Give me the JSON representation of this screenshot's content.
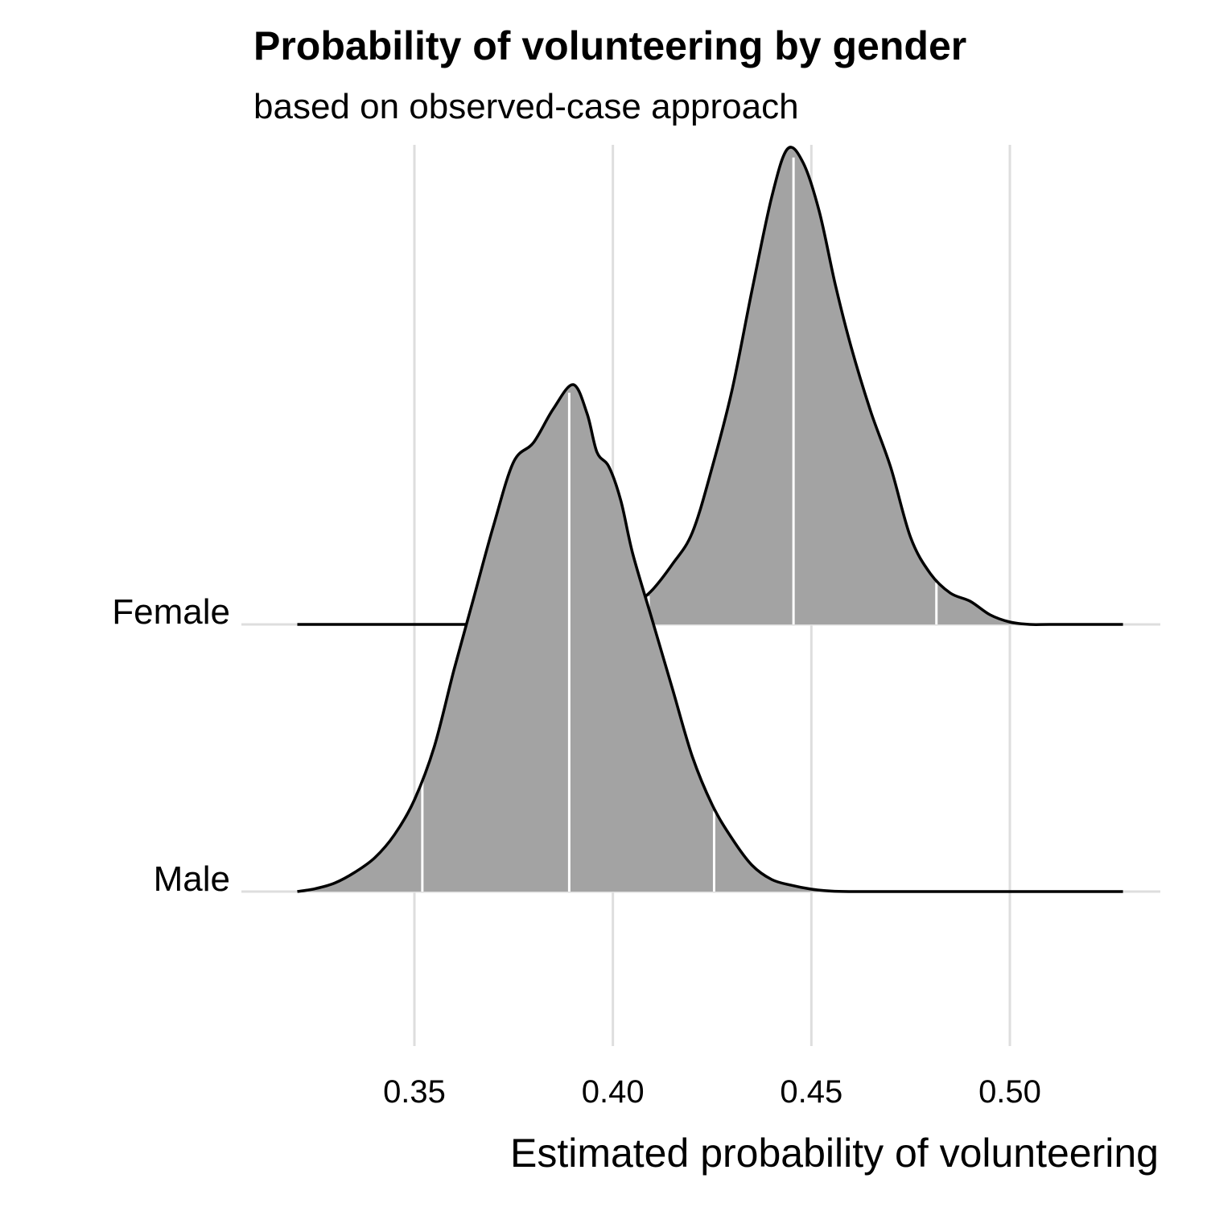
{
  "chart_data": {
    "type": "area",
    "subtype": "ridgeline-density",
    "title": "Probability of volunteering by gender",
    "subtitle": "based on observed-case approach",
    "xlabel": "Estimated probability of volunteering",
    "ylabel": "",
    "xlim": [
      0.3225,
      0.5375
    ],
    "x_ticks": [
      0.35,
      0.4,
      0.45,
      0.5
    ],
    "x_tick_labels": [
      "0.35",
      "0.40",
      "0.45",
      "0.50"
    ],
    "categories": [
      "Male",
      "Female"
    ],
    "grid": "vertical",
    "fill_color": "#a3a3a3",
    "line_color": "#000000",
    "quantile_line_color": "#ffffff",
    "series": [
      {
        "name": "Male",
        "quantiles": [
          0.352,
          0.389,
          0.4255
        ],
        "points": [
          [
            0.3205,
            0.0
          ],
          [
            0.325,
            0.006
          ],
          [
            0.33,
            0.018
          ],
          [
            0.335,
            0.04
          ],
          [
            0.34,
            0.07
          ],
          [
            0.345,
            0.118
          ],
          [
            0.35,
            0.19
          ],
          [
            0.355,
            0.3
          ],
          [
            0.36,
            0.46
          ],
          [
            0.365,
            0.61
          ],
          [
            0.37,
            0.76
          ],
          [
            0.375,
            0.89
          ],
          [
            0.38,
            0.93
          ],
          [
            0.385,
            1.0
          ],
          [
            0.39,
            1.05
          ],
          [
            0.3935,
            0.99
          ],
          [
            0.396,
            0.91
          ],
          [
            0.399,
            0.88
          ],
          [
            0.402,
            0.81
          ],
          [
            0.405,
            0.7
          ],
          [
            0.41,
            0.56
          ],
          [
            0.415,
            0.42
          ],
          [
            0.42,
            0.28
          ],
          [
            0.425,
            0.18
          ],
          [
            0.43,
            0.11
          ],
          [
            0.435,
            0.055
          ],
          [
            0.44,
            0.025
          ],
          [
            0.445,
            0.013
          ],
          [
            0.45,
            0.005
          ],
          [
            0.455,
            0.001
          ],
          [
            0.46,
            0.0
          ],
          [
            0.47,
            0.0
          ],
          [
            0.48,
            0.0
          ],
          [
            0.49,
            0.0
          ],
          [
            0.5,
            0.0
          ],
          [
            0.51,
            0.0
          ],
          [
            0.52,
            0.0
          ],
          [
            0.5285,
            0.0
          ]
        ]
      },
      {
        "name": "Female",
        "quantiles": [
          0.409,
          0.4455,
          0.4815
        ],
        "points": [
          [
            0.3205,
            0.0
          ],
          [
            0.33,
            0.0
          ],
          [
            0.34,
            0.0
          ],
          [
            0.35,
            0.0
          ],
          [
            0.36,
            0.0
          ],
          [
            0.37,
            0.0
          ],
          [
            0.38,
            0.0
          ],
          [
            0.39,
            0.0
          ],
          [
            0.4,
            0.0
          ],
          [
            0.4055,
            0.04
          ],
          [
            0.41,
            0.072
          ],
          [
            0.415,
            0.125
          ],
          [
            0.42,
            0.19
          ],
          [
            0.425,
            0.325
          ],
          [
            0.43,
            0.485
          ],
          [
            0.435,
            0.69
          ],
          [
            0.44,
            0.885
          ],
          [
            0.444,
            0.985
          ],
          [
            0.448,
            0.955
          ],
          [
            0.452,
            0.855
          ],
          [
            0.456,
            0.705
          ],
          [
            0.46,
            0.575
          ],
          [
            0.465,
            0.44
          ],
          [
            0.47,
            0.325
          ],
          [
            0.475,
            0.18
          ],
          [
            0.48,
            0.105
          ],
          [
            0.485,
            0.065
          ],
          [
            0.49,
            0.048
          ],
          [
            0.495,
            0.02
          ],
          [
            0.5,
            0.005
          ],
          [
            0.505,
            0.0
          ],
          [
            0.51,
            0.0
          ],
          [
            0.52,
            0.0
          ],
          [
            0.5285,
            0.0
          ]
        ]
      }
    ]
  }
}
